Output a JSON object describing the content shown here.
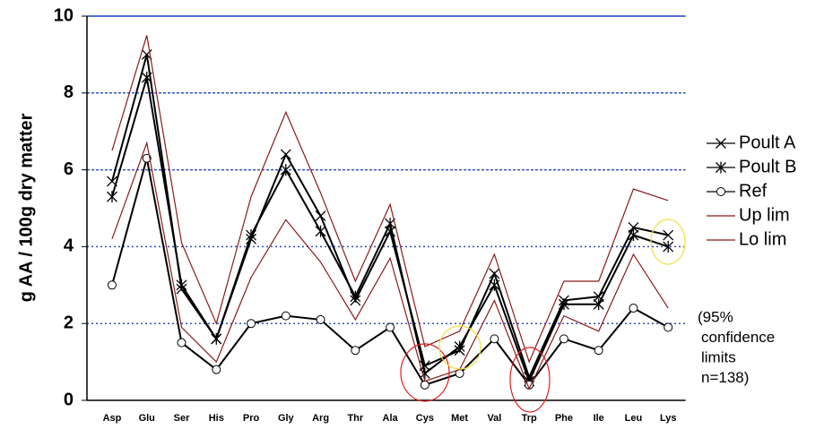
{
  "chart_data": {
    "type": "line",
    "ylabel": "g AA / 100g dry matter",
    "categories": [
      "Asp",
      "Glu",
      "Ser",
      "His",
      "Pro",
      "Gly",
      "Arg",
      "Thr",
      "Ala",
      "Cys",
      "Met",
      "Val",
      "Trp",
      "Phe",
      "Ile",
      "Leu",
      "Lys"
    ],
    "series": [
      {
        "name": "Poult A",
        "color": "#000000",
        "marker": "x",
        "values": [
          5.7,
          9.0,
          2.9,
          1.6,
          4.2,
          6.4,
          4.8,
          2.6,
          4.4,
          0.9,
          1.3,
          3.3,
          0.6,
          2.6,
          2.7,
          4.5,
          4.3
        ]
      },
      {
        "name": "Poult B",
        "color": "#000000",
        "marker": "asterisk",
        "values": [
          5.3,
          8.4,
          3.0,
          1.6,
          4.3,
          6.0,
          4.4,
          2.7,
          4.6,
          0.7,
          1.4,
          3.0,
          0.5,
          2.5,
          2.5,
          4.3,
          4.0
        ]
      },
      {
        "name": "Ref",
        "color": "#000000",
        "marker": "circle",
        "values": [
          3.0,
          6.3,
          1.5,
          0.8,
          2.0,
          2.2,
          2.1,
          1.3,
          1.9,
          0.4,
          0.7,
          1.6,
          0.4,
          1.6,
          1.3,
          2.4,
          1.9
        ]
      },
      {
        "name": "Up lim",
        "color": "#8b1a1a",
        "marker": null,
        "values": [
          6.5,
          9.5,
          4.1,
          2.0,
          5.3,
          7.5,
          5.4,
          3.1,
          5.1,
          1.4,
          1.8,
          3.8,
          1.0,
          3.1,
          3.1,
          5.5,
          5.2
        ]
      },
      {
        "name": "Lo lim",
        "color": "#8b1a1a",
        "marker": null,
        "values": [
          4.2,
          6.7,
          1.9,
          1.0,
          3.2,
          4.7,
          3.6,
          2.1,
          3.7,
          0.5,
          0.8,
          2.6,
          0.3,
          2.2,
          1.8,
          3.8,
          2.4
        ]
      }
    ],
    "note": [
      "(95%",
      "confidence",
      "limits",
      "n=138)"
    ],
    "ylim": [
      0,
      10
    ],
    "yticks": [
      0,
      2,
      4,
      6,
      8,
      10
    ],
    "grid": true
  }
}
